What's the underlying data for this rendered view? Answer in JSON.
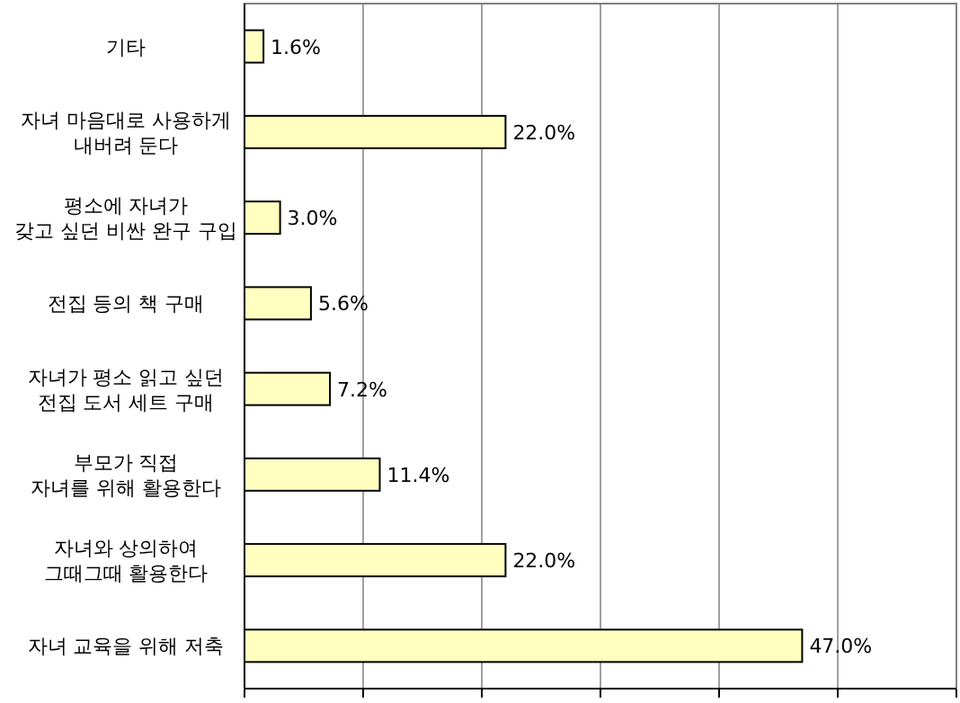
{
  "chart_data": {
    "type": "bar",
    "orientation": "horizontal",
    "categories": [
      "기타",
      "자녀 마음대로 사용하게\n내버려 둔다",
      "평소에 자녀가\n갖고 싶던 비싼 완구 구입",
      "전집 등의 책 구매",
      "자녀가 평소 읽고 싶던\n전집 도서 세트 구매",
      "부모가 직접\n자녀를 위해 활용한다",
      "자녀와 상의하여\n그때그때 활용한다",
      "자녀 교육을 위해 저축"
    ],
    "values": [
      1.6,
      22.0,
      3.0,
      5.6,
      7.2,
      11.4,
      22.0,
      47.0
    ],
    "value_labels": [
      "1.6%",
      "22.0%",
      "3.0%",
      "5.6%",
      "7.2%",
      "11.4%",
      "22.0%",
      "47.0%"
    ],
    "color": "#ffffc0",
    "xlim": [
      0,
      60
    ],
    "xticks": [
      {
        "value": 0,
        "label": null
      },
      {
        "value": 10,
        "label": null
      },
      {
        "value": 20,
        "label": null
      },
      {
        "value": 30,
        "label": null
      },
      {
        "value": 40,
        "label": null
      },
      {
        "value": 50,
        "label": null
      },
      {
        "value": 60,
        "label": null
      }
    ],
    "tick_labels": "y",
    "grid": "x"
  }
}
